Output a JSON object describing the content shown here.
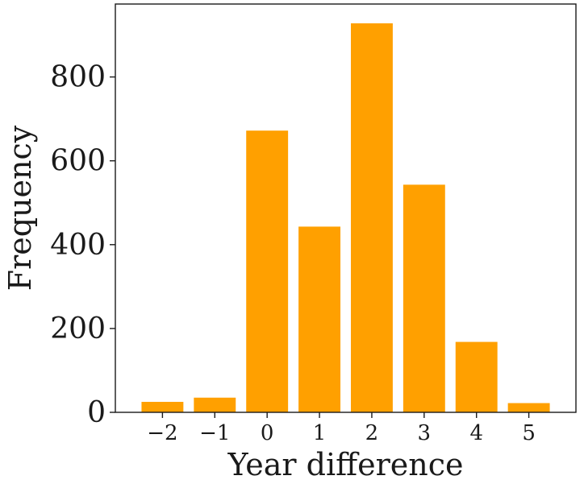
{
  "chart_data": {
    "type": "bar",
    "title": "",
    "xlabel": "Year difference",
    "ylabel": "Frequency",
    "categories": [
      "−2",
      "−1",
      "0",
      "1",
      "2",
      "3",
      "4",
      "5"
    ],
    "values": [
      25,
      35,
      672,
      443,
      928,
      543,
      168,
      22
    ],
    "ylim": [
      0,
      974
    ],
    "yticks": [
      "0",
      "200",
      "400",
      "600",
      "800"
    ],
    "ytick_values": [
      0,
      200,
      400,
      600,
      800
    ],
    "grid": false,
    "bar_color": "#ffa000",
    "axis_color": "#1a1a1a"
  }
}
